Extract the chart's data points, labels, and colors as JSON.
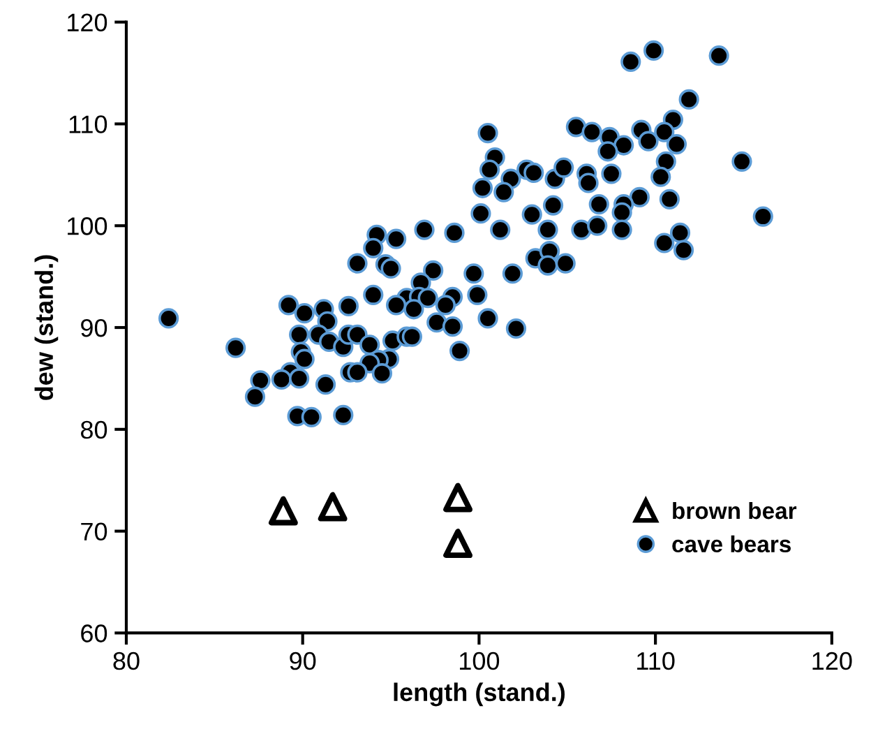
{
  "chart_data": {
    "type": "scatter",
    "xlabel": "length (stand.)",
    "ylabel": "dew (stand.)",
    "xlim": [
      80,
      120
    ],
    "xticks": [
      80,
      90,
      100,
      110,
      120
    ],
    "ylim": [
      60,
      120
    ],
    "yticks": [
      60,
      70,
      80,
      90,
      100,
      110,
      120
    ],
    "grid": false,
    "legend": "bottom right",
    "series": [
      {
        "name": "brown bear",
        "color": "#000000",
        "marker": "triangle",
        "x": [
          88.9,
          91.7,
          98.8,
          98.8
        ],
        "values": [
          72.0,
          72.4,
          73.3,
          68.8
        ]
      },
      {
        "name": "cave bears",
        "color": "#000000",
        "marker": "circle",
        "x": [
          82.4,
          86.2,
          87.6,
          87.3,
          89.2,
          90.1,
          91.2,
          91.4,
          92.6,
          89.8,
          90.9,
          91.5,
          92.3,
          92.6,
          89.9,
          90.1,
          89.3,
          88.8,
          89.8,
          91.3,
          92.7,
          89.7,
          90.5,
          92.3,
          93.1,
          100.5,
          100.9,
          100.6,
          101.8,
          100.2,
          101.4,
          102.7,
          103.1,
          104.3,
          104.8,
          105.5,
          100.1,
          103.0,
          104.2,
          101.2,
          103.9,
          96.9,
          98.6,
          94.2,
          95.3,
          94.0,
          94.7,
          95.0,
          97.4,
          99.7,
          101.9,
          103.2,
          104.0,
          103.9,
          104.9,
          96.7,
          94.0,
          99.9,
          95.9,
          96.6,
          98.5,
          95.3,
          96.3,
          97.1,
          98.1,
          97.6,
          98.5,
          100.5,
          102.1,
          93.1,
          93.8,
          95.1,
          95.9,
          96.2,
          94.9,
          94.3,
          93.8,
          93.1,
          94.5,
          98.9,
          109.9,
          108.6,
          113.6,
          111.9,
          111.0,
          106.4,
          107.4,
          108.2,
          109.2,
          109.6,
          110.5,
          111.2,
          107.3,
          110.6,
          114.9,
          106.1,
          106.2,
          107.5,
          110.3,
          106.8,
          109.1,
          108.2,
          108.1,
          110.8,
          105.8,
          106.7,
          108.1,
          116.1,
          111.4,
          110.5,
          111.6
        ],
        "values": [
          90.9,
          88.0,
          84.8,
          83.2,
          92.2,
          91.4,
          91.8,
          90.6,
          92.1,
          89.3,
          89.3,
          88.6,
          88.1,
          89.3,
          87.6,
          86.9,
          85.6,
          84.9,
          85.0,
          84.4,
          85.6,
          81.3,
          81.2,
          81.4,
          96.3,
          109.1,
          106.7,
          105.5,
          104.6,
          103.7,
          103.3,
          105.5,
          105.2,
          104.6,
          105.7,
          109.7,
          101.2,
          101.1,
          102.0,
          99.6,
          99.6,
          99.6,
          99.3,
          99.1,
          98.7,
          97.8,
          96.2,
          95.8,
          95.6,
          95.3,
          95.3,
          96.8,
          97.5,
          96.1,
          96.3,
          94.4,
          93.2,
          93.2,
          92.9,
          93.0,
          93.0,
          92.2,
          91.8,
          92.9,
          92.2,
          90.5,
          90.1,
          90.9,
          89.9,
          89.3,
          88.3,
          88.7,
          89.1,
          89.1,
          86.9,
          86.8,
          86.5,
          85.6,
          85.5,
          87.7,
          117.2,
          116.1,
          116.7,
          112.4,
          110.4,
          109.2,
          108.7,
          107.9,
          109.4,
          108.3,
          109.2,
          108.0,
          107.3,
          106.3,
          106.3,
          105.1,
          104.2,
          105.1,
          104.8,
          102.1,
          102.8,
          102.1,
          101.3,
          102.6,
          99.6,
          100.0,
          99.6,
          100.9,
          99.3,
          98.3,
          97.6
        ]
      }
    ]
  }
}
